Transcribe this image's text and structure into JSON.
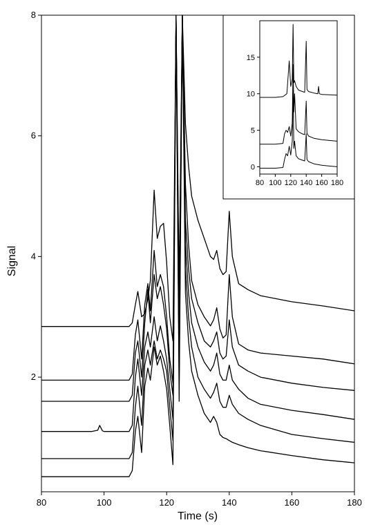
{
  "chart_data": [
    {
      "type": "line",
      "title": "",
      "xlabel": "Time (s)",
      "ylabel": "Signal",
      "xlim": [
        80,
        180
      ],
      "ylim": [
        0.1,
        8
      ],
      "xticks": [
        80,
        100,
        120,
        140,
        160,
        180
      ],
      "yticks": [
        2,
        4,
        6,
        8
      ],
      "grid": false,
      "legend": "none",
      "color": "#000000",
      "series": [
        {
          "x": [
            80,
            100,
            108,
            109,
            110,
            110.8,
            112,
            113,
            114,
            114.8,
            116,
            117,
            118,
            119,
            120,
            121,
            122,
            123,
            124,
            125,
            126,
            127,
            128,
            130,
            132,
            134,
            135,
            136,
            137,
            138,
            139,
            140,
            141,
            143,
            146,
            150,
            160,
            170,
            180
          ],
          "y": [
            2.84,
            2.84,
            2.84,
            2.9,
            3.2,
            3.42,
            3.0,
            3.05,
            3.3,
            3.6,
            5.1,
            4.3,
            4.5,
            4.55,
            3.9,
            3.0,
            2.6,
            8,
            3.5,
            8,
            6.2,
            5.5,
            5.0,
            4.6,
            4.3,
            4.0,
            3.95,
            4.1,
            3.8,
            3.7,
            3.75,
            4.75,
            4.0,
            3.55,
            3.45,
            3.35,
            3.25,
            3.18,
            3.1
          ]
        },
        {
          "x": [
            80,
            100,
            108,
            109,
            110,
            110.8,
            112,
            113,
            114,
            114.8,
            116,
            117,
            118,
            119,
            120,
            121,
            122,
            123,
            124,
            125,
            126,
            127,
            128,
            130,
            132,
            134,
            135,
            136,
            137,
            138,
            139,
            140,
            141,
            143,
            146,
            150,
            160,
            170,
            180
          ],
          "y": [
            1.95,
            1.95,
            1.95,
            2.05,
            2.7,
            2.95,
            2.3,
            3.2,
            3.55,
            3.1,
            4.1,
            3.5,
            3.7,
            3.5,
            3.0,
            2.3,
            1.9,
            8,
            3.0,
            8,
            5.2,
            4.2,
            3.6,
            3.2,
            3.0,
            2.85,
            2.95,
            3.15,
            2.8,
            2.65,
            2.7,
            3.7,
            3.0,
            2.55,
            2.45,
            2.4,
            2.35,
            2.3,
            2.22
          ]
        },
        {
          "x": [
            80,
            100,
            108,
            109,
            110,
            110.8,
            112,
            113,
            114,
            114.8,
            116,
            117,
            118,
            119,
            120,
            121,
            122,
            123,
            124,
            125,
            126,
            127,
            128,
            130,
            132,
            134,
            135,
            136,
            137,
            138,
            139,
            140,
            141,
            143,
            146,
            150,
            160,
            170,
            180
          ],
          "y": [
            1.6,
            1.6,
            1.6,
            1.7,
            2.4,
            2.6,
            2.0,
            2.9,
            3.45,
            2.9,
            3.7,
            3.3,
            3.5,
            3.2,
            2.8,
            2.1,
            1.7,
            8,
            2.7,
            8,
            4.6,
            3.8,
            3.3,
            2.9,
            2.6,
            2.5,
            2.6,
            2.75,
            2.4,
            2.3,
            2.35,
            2.95,
            2.5,
            2.2,
            2.1,
            2.0,
            1.9,
            1.83,
            1.78
          ]
        },
        {
          "x": [
            80,
            96,
            98,
            98.6,
            99.5,
            100,
            108,
            109,
            110,
            110.8,
            112,
            113,
            114,
            114.8,
            116,
            117,
            118,
            119,
            120,
            121,
            122,
            123,
            124,
            125,
            126,
            127,
            128,
            130,
            132,
            134,
            135,
            136,
            137,
            138,
            139,
            140,
            141,
            143,
            146,
            150,
            160,
            170,
            180
          ],
          "y": [
            1.1,
            1.1,
            1.12,
            1.2,
            1.11,
            1.1,
            1.1,
            1.2,
            2.0,
            2.3,
            1.7,
            2.5,
            2.75,
            2.5,
            3.0,
            2.6,
            2.85,
            2.6,
            2.3,
            1.8,
            1.3,
            8,
            2.3,
            8,
            4.2,
            3.4,
            2.9,
            2.5,
            2.25,
            2.1,
            2.2,
            2.4,
            2.05,
            1.95,
            1.95,
            2.2,
            1.95,
            1.8,
            1.65,
            1.55,
            1.45,
            1.38,
            1.3
          ]
        },
        {
          "x": [
            80,
            100,
            108,
            109,
            110,
            110.8,
            112,
            113,
            114,
            114.8,
            116,
            117,
            118,
            119,
            120,
            121,
            122,
            123,
            124,
            125,
            126,
            127,
            128,
            130,
            132,
            134,
            135,
            136,
            137,
            138,
            139,
            140,
            141,
            143,
            146,
            150,
            160,
            170,
            180
          ],
          "y": [
            0.65,
            0.65,
            0.65,
            0.75,
            1.5,
            1.85,
            1.2,
            2.2,
            2.45,
            2.2,
            2.6,
            2.3,
            2.45,
            2.3,
            2.1,
            1.5,
            0.95,
            8,
            1.9,
            8,
            3.8,
            3.0,
            2.5,
            2.0,
            1.8,
            1.65,
            1.75,
            1.9,
            1.6,
            1.5,
            1.5,
            1.7,
            1.55,
            1.4,
            1.3,
            1.2,
            1.05,
            0.98,
            0.92
          ]
        },
        {
          "x": [
            80,
            100,
            108,
            109,
            110,
            110.8,
            112,
            113,
            114,
            114.8,
            116,
            117,
            118,
            119,
            120,
            121,
            122,
            123,
            124,
            125,
            126,
            127,
            128,
            130,
            132,
            134,
            135,
            136,
            137,
            138,
            139,
            140,
            141,
            143,
            146,
            150,
            160,
            170,
            180
          ],
          "y": [
            0.35,
            0.35,
            0.35,
            0.45,
            1.1,
            1.35,
            0.75,
            1.85,
            2.15,
            1.95,
            2.5,
            2.2,
            2.35,
            2.1,
            1.8,
            1.2,
            0.55,
            8,
            1.6,
            8,
            3.4,
            2.6,
            2.1,
            1.7,
            1.4,
            1.25,
            1.35,
            1.25,
            1.05,
            1.0,
            0.98,
            0.95,
            0.92,
            0.88,
            0.83,
            0.78,
            0.7,
            0.63,
            0.58
          ]
        }
      ]
    },
    {
      "type": "line",
      "title": "",
      "xlabel": "",
      "ylabel": "",
      "xlim": [
        80,
        180
      ],
      "ylim": [
        -1,
        20
      ],
      "xticks": [
        80,
        100,
        120,
        140,
        160,
        180
      ],
      "yticks": [
        0,
        5,
        10,
        15
      ],
      "grid": false,
      "legend": "none",
      "color": "#000000",
      "series": [
        {
          "x": [
            80,
            100,
            110,
            115,
            118,
            120,
            122,
            123,
            124,
            125,
            127,
            130,
            135,
            138,
            140,
            141,
            143,
            150,
            155,
            156,
            157,
            160,
            170,
            180
          ],
          "y": [
            9.5,
            9.5,
            9.6,
            10.0,
            14.5,
            11.0,
            12.0,
            19.5,
            11.5,
            11.8,
            11.0,
            10.5,
            10.3,
            10.2,
            17.2,
            10.6,
            10.3,
            10.1,
            10.0,
            11.0,
            10.0,
            9.9,
            9.85,
            9.8
          ]
        },
        {
          "x": [
            80,
            100,
            110,
            112,
            114,
            116,
            118,
            120,
            122,
            123,
            124,
            125,
            127,
            130,
            135,
            138,
            140,
            141,
            143,
            150,
            160,
            170,
            180
          ],
          "y": [
            3.1,
            3.1,
            3.2,
            4.5,
            5.0,
            4.7,
            5.5,
            4.2,
            6.0,
            14.0,
            7.5,
            10.0,
            5.2,
            4.8,
            4.5,
            4.4,
            9.0,
            4.6,
            4.2,
            3.9,
            3.7,
            3.6,
            3.5
          ]
        },
        {
          "x": [
            80,
            100,
            110,
            112,
            114,
            116,
            118,
            120,
            122,
            123,
            124,
            125,
            127,
            130,
            135,
            138,
            140,
            141,
            143,
            150,
            160,
            170,
            180
          ],
          "y": [
            -0.2,
            -0.2,
            -0.1,
            1.0,
            1.8,
            1.5,
            2.8,
            1.6,
            3.5,
            10.5,
            2.5,
            3.5,
            1.5,
            1.1,
            0.9,
            0.8,
            4.5,
            1.0,
            0.7,
            0.4,
            0.2,
            0.1,
            0.0
          ]
        }
      ]
    }
  ]
}
